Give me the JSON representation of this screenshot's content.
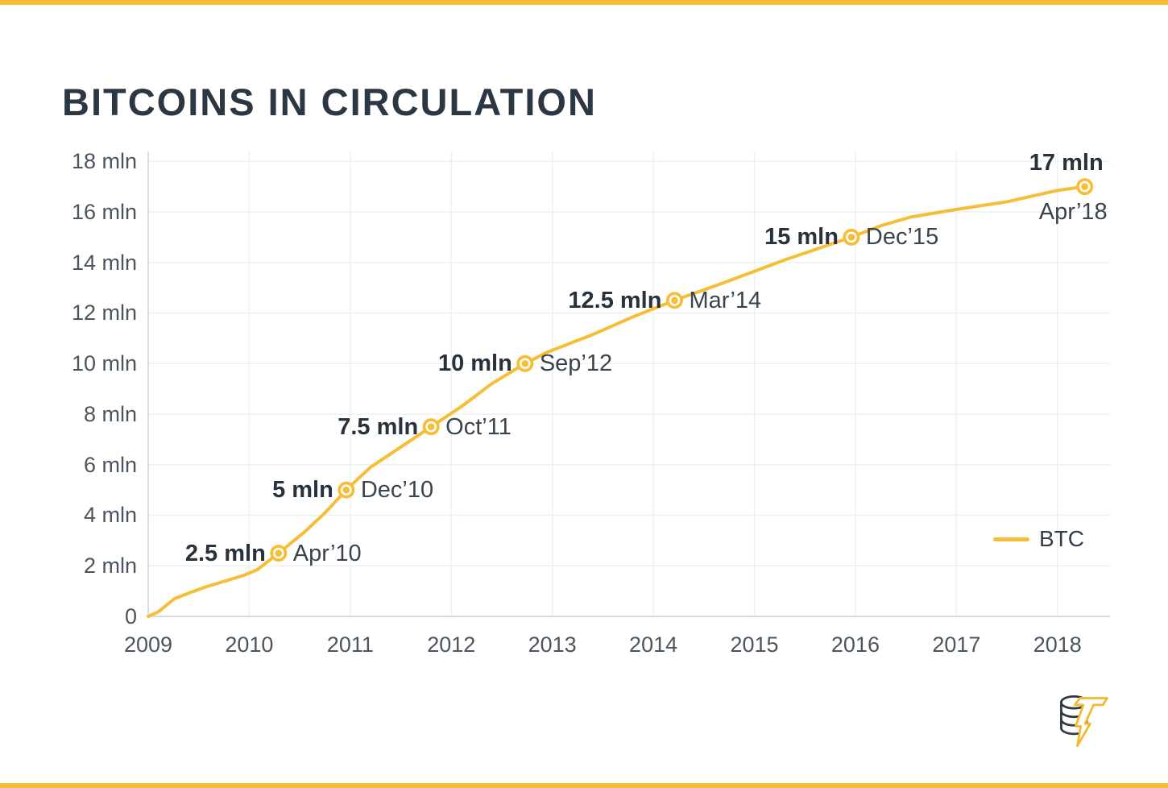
{
  "page": {
    "title": "BITCOINS IN CIRCULATION",
    "accent_color": "#F6BE37",
    "title_color": "#2B3743",
    "background_color": "#FFFFFF"
  },
  "legend": {
    "label": "BTC",
    "position": "right"
  },
  "footer_logo": {
    "icon": "coin-stack-lightning-icon"
  },
  "chart_data": {
    "type": "line",
    "title": "BITCOINS IN CIRCULATION",
    "xlabel": "",
    "ylabel": "",
    "x_unit": "year",
    "y_unit": "mln BTC",
    "xlim": [
      2009,
      2018.52
    ],
    "ylim": [
      0,
      18.39
    ],
    "grid": true,
    "legend_position": "right",
    "line_color": "#F6BE37",
    "x_ticks": [
      {
        "v": 2009,
        "label": "2009"
      },
      {
        "v": 2010,
        "label": "2010"
      },
      {
        "v": 2011,
        "label": "2011"
      },
      {
        "v": 2012,
        "label": "2012"
      },
      {
        "v": 2013,
        "label": "2013"
      },
      {
        "v": 2014,
        "label": "2014"
      },
      {
        "v": 2015,
        "label": "2015"
      },
      {
        "v": 2016,
        "label": "2016"
      },
      {
        "v": 2017,
        "label": "2017"
      },
      {
        "v": 2018,
        "label": "2018"
      }
    ],
    "y_ticks": [
      {
        "v": 18,
        "label": "18 mln"
      },
      {
        "v": 16,
        "label": "16 mln"
      },
      {
        "v": 14,
        "label": "14 mln"
      },
      {
        "v": 12,
        "label": "12 mln"
      },
      {
        "v": 10,
        "label": "10 mln"
      },
      {
        "v": 8,
        "label": "8 mln"
      },
      {
        "v": 6,
        "label": "6 mln"
      },
      {
        "v": 4,
        "label": "4 mln"
      },
      {
        "v": 2,
        "label": "2 mln"
      },
      {
        "v": 0,
        "label": "0"
      }
    ],
    "series": [
      {
        "name": "BTC",
        "color": "#F6BE37",
        "points": [
          [
            2009.0,
            0.0
          ],
          [
            2009.1,
            0.18
          ],
          [
            2009.26,
            0.7
          ],
          [
            2009.42,
            0.95
          ],
          [
            2009.58,
            1.18
          ],
          [
            2009.79,
            1.43
          ],
          [
            2009.95,
            1.63
          ],
          [
            2010.08,
            1.85
          ],
          [
            2010.29,
            2.5
          ],
          [
            2010.55,
            3.35
          ],
          [
            2010.75,
            4.1
          ],
          [
            2010.96,
            5.0
          ],
          [
            2011.2,
            5.9
          ],
          [
            2011.5,
            6.7
          ],
          [
            2011.8,
            7.5
          ],
          [
            2012.1,
            8.3
          ],
          [
            2012.4,
            9.2
          ],
          [
            2012.73,
            10.0
          ],
          [
            2012.95,
            10.45
          ],
          [
            2013.4,
            11.15
          ],
          [
            2013.8,
            11.85
          ],
          [
            2014.21,
            12.5
          ],
          [
            2014.7,
            13.2
          ],
          [
            2015.3,
            14.1
          ],
          [
            2015.96,
            15.0
          ],
          [
            2016.25,
            15.45
          ],
          [
            2016.55,
            15.8
          ],
          [
            2017.0,
            16.1
          ],
          [
            2017.5,
            16.4
          ],
          [
            2018.0,
            16.85
          ],
          [
            2018.27,
            17.0
          ]
        ]
      }
    ],
    "milestones": [
      {
        "x": 2010.29,
        "y": 2.5,
        "value_label": "2.5 mln",
        "date_label": "Apr’10",
        "label_layout": "side"
      },
      {
        "x": 2010.96,
        "y": 5.0,
        "value_label": "5 mln",
        "date_label": "Dec’10",
        "label_layout": "side"
      },
      {
        "x": 2011.8,
        "y": 7.5,
        "value_label": "7.5 mln",
        "date_label": "Oct’11",
        "label_layout": "side"
      },
      {
        "x": 2012.73,
        "y": 10.0,
        "value_label": "10 mln",
        "date_label": "Sep’12",
        "label_layout": "side"
      },
      {
        "x": 2014.21,
        "y": 12.5,
        "value_label": "12.5 mln",
        "date_label": "Mar’14",
        "label_layout": "side"
      },
      {
        "x": 2015.96,
        "y": 15.0,
        "value_label": "15 mln",
        "date_label": "Dec’15",
        "label_layout": "side"
      },
      {
        "x": 2018.27,
        "y": 17.0,
        "value_label": "17 mln",
        "date_label": "Apr’18",
        "label_layout": "stacked"
      }
    ]
  }
}
